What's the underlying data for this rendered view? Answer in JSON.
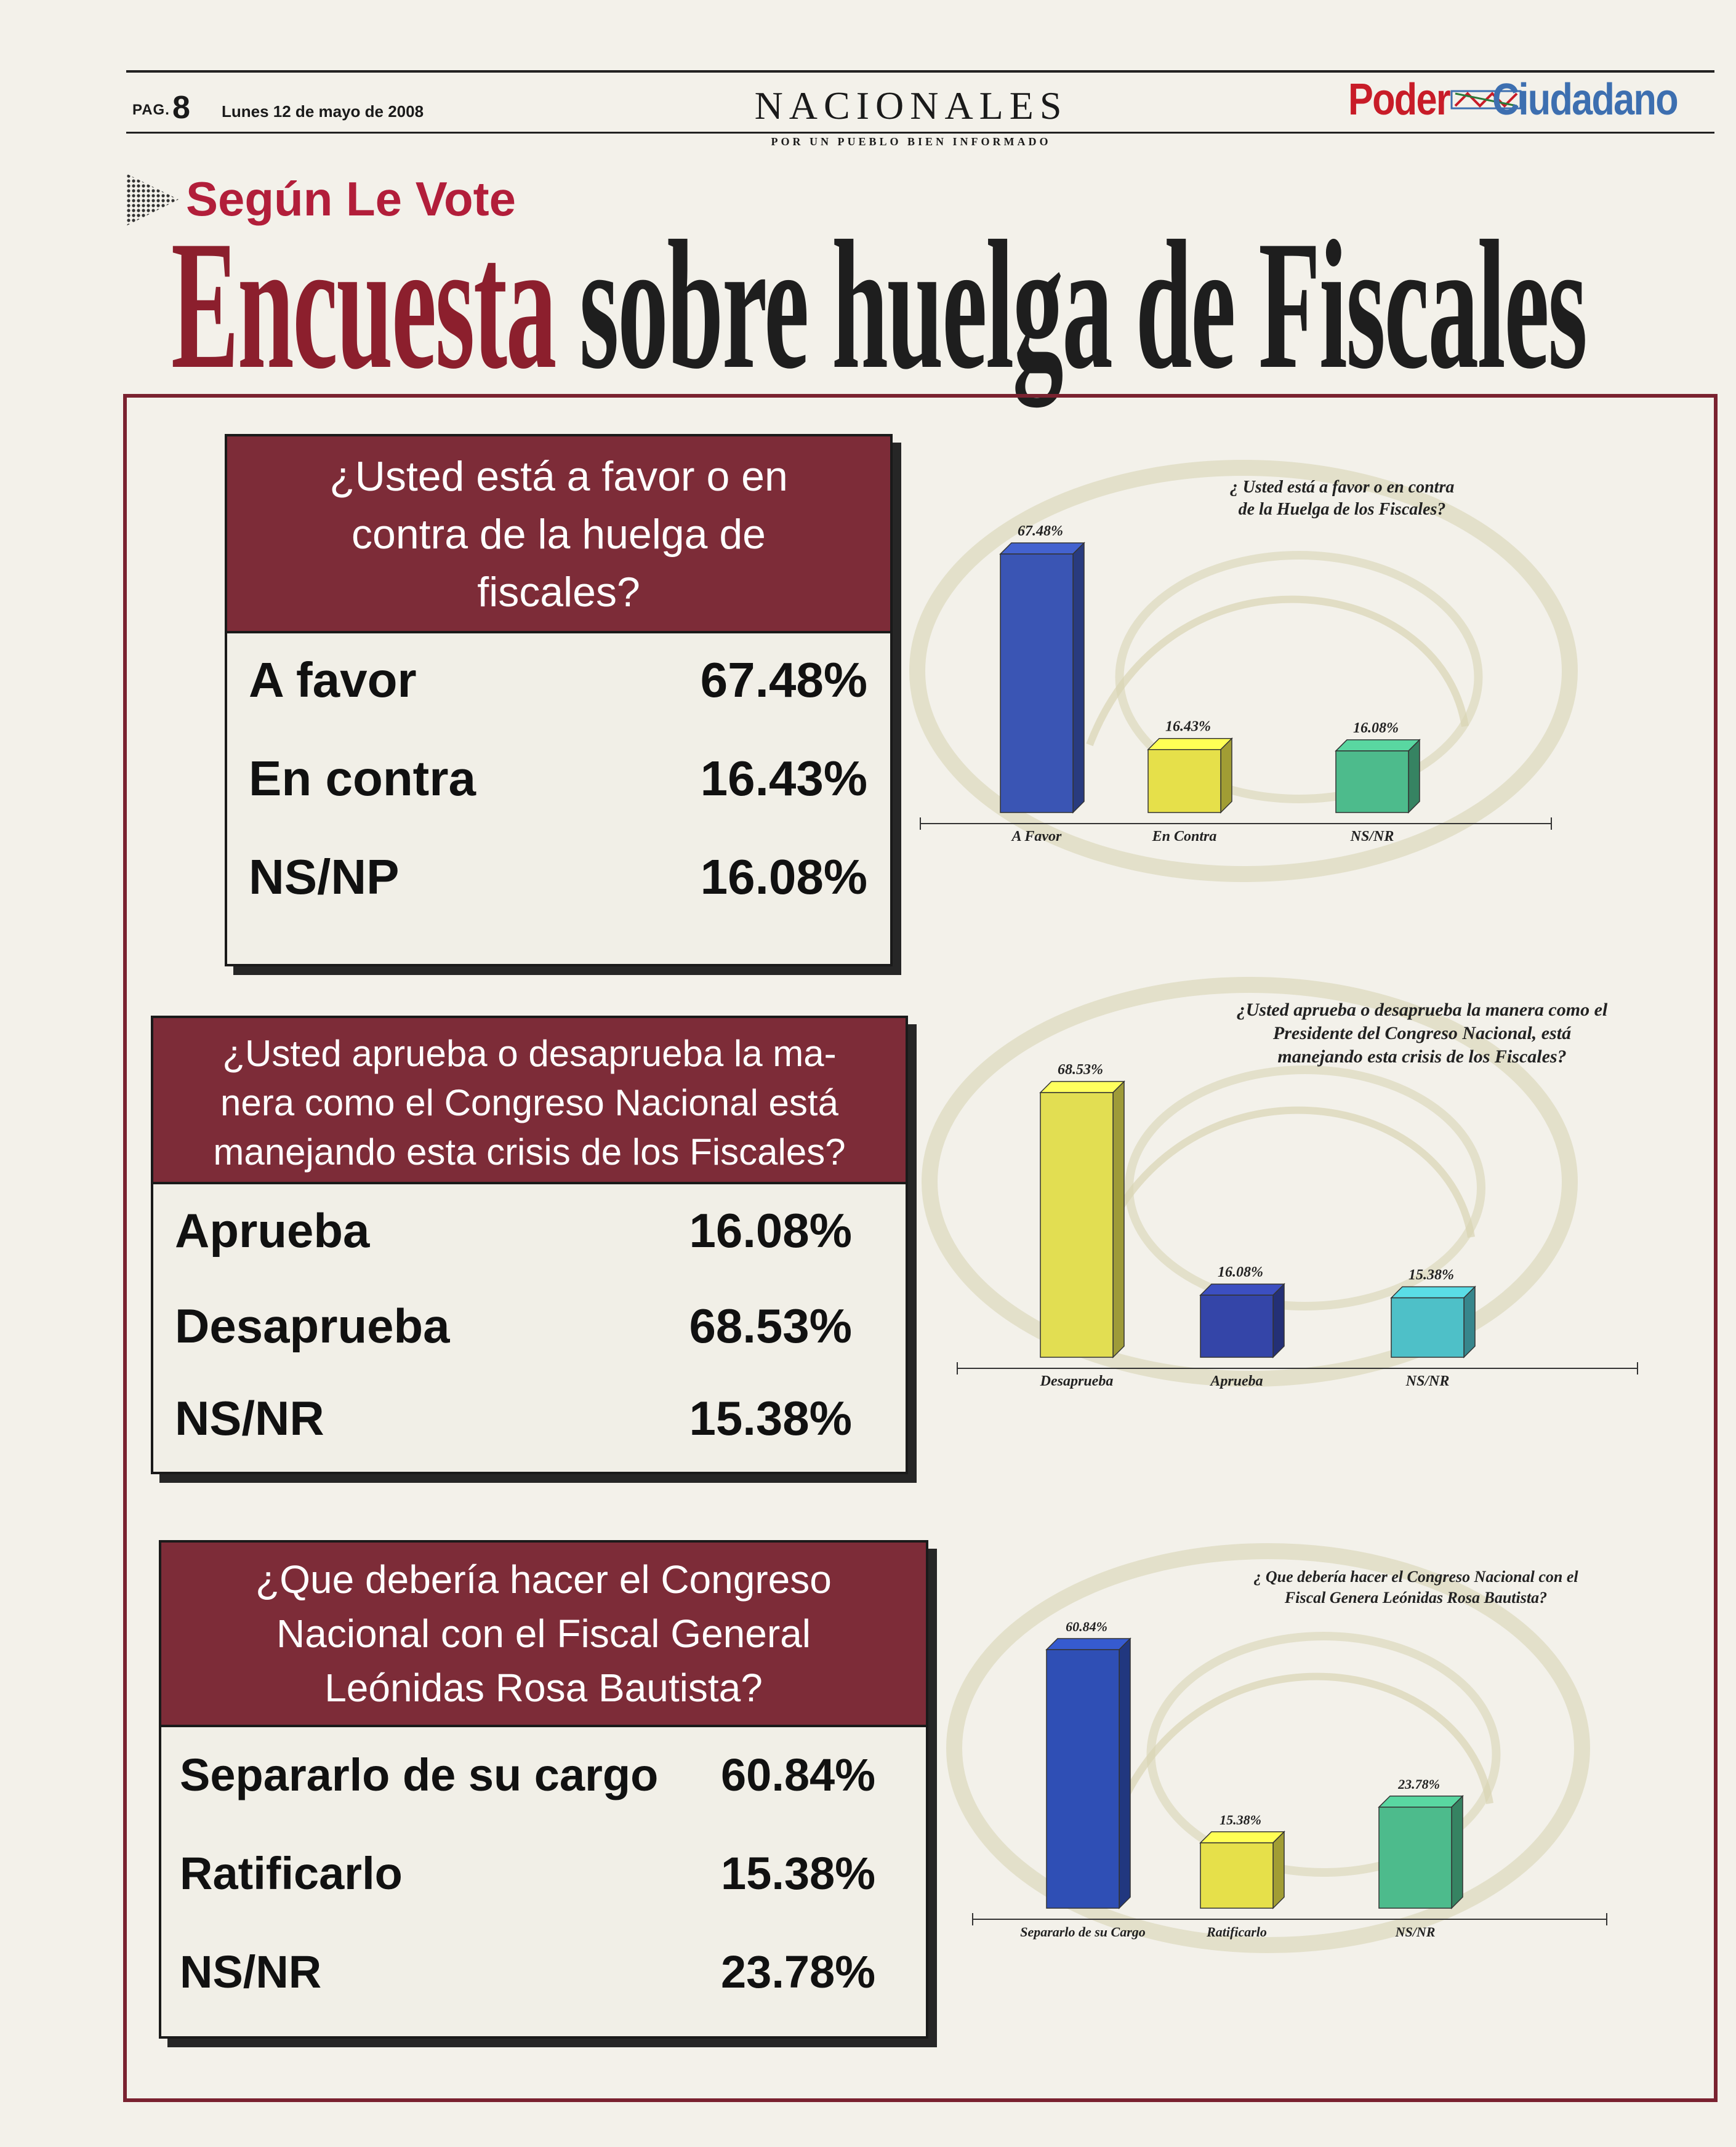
{
  "masthead": {
    "pag_label": "PAG.",
    "pag_number": "8",
    "date": "Lunes 12 de mayo de 2008",
    "section": "NACIONALES",
    "section_tagline": "POR UN PUEBLO BIEN INFORMADO",
    "logo_left": "Poder",
    "logo_right": "Ciudadano"
  },
  "kicker": "Según Le Vote",
  "headline": {
    "part1": "Encuesta",
    "part2": "sobre huelga de Fiscales"
  },
  "questions": [
    {
      "question": [
        "¿Usted está a favor o en",
        "contra de la huelga de",
        "fiscales?"
      ],
      "rows": [
        {
          "label": "A favor",
          "value": "67.48%"
        },
        {
          "label": "En contra",
          "value": "16.43%"
        },
        {
          "label": "NS/NP",
          "value": "16.08%"
        }
      ]
    },
    {
      "question": [
        "¿Usted aprueba o desaprueba la ma-",
        "nera como el Congreso Nacional está",
        "manejando esta crisis de los Fiscales?"
      ],
      "rows": [
        {
          "label": "Aprueba",
          "value": "16.08%"
        },
        {
          "label": "Desaprueba",
          "value": "68.53%"
        },
        {
          "label": "NS/NR",
          "value": "15.38%"
        }
      ]
    },
    {
      "question": [
        "¿Que debería hacer el Congreso",
        "Nacional con el Fiscal General",
        "Leónidas Rosa Bautista?"
      ],
      "rows": [
        {
          "label": "Separarlo de su cargo",
          "value": "60.84%"
        },
        {
          "label": "Ratificarlo",
          "value": "15.38%"
        },
        {
          "label": "NS/NR",
          "value": "23.78%"
        }
      ]
    }
  ],
  "chart_data": [
    {
      "type": "bar",
      "title": [
        "¿ Usted está a favor o en contra",
        "de la Huelga de los Fiscales?"
      ],
      "categories": [
        "A Favor",
        "En Contra",
        "NS/NR"
      ],
      "values": [
        67.48,
        16.43,
        16.08
      ],
      "value_labels": [
        "67.48%",
        "16.43%",
        "16.08%"
      ],
      "colors": [
        "#3a55b4",
        "#e6e04a",
        "#4dbb8c"
      ]
    },
    {
      "type": "bar",
      "title": [
        "¿Usted aprueba o desaprueba la manera como el",
        "Presidente del Congreso Nacional, está",
        "manejando esta crisis de los Fiscales?"
      ],
      "categories": [
        "Desaprueba",
        "Aprueba",
        "NS/NR"
      ],
      "values": [
        68.53,
        16.08,
        15.38
      ],
      "value_labels": [
        "68.53%",
        "16.08%",
        "15.38%"
      ],
      "colors": [
        "#e2de52",
        "#3445a8",
        "#4ec0c8"
      ]
    },
    {
      "type": "bar",
      "title": [
        "¿ Que debería hacer el Congreso Nacional con el",
        "Fiscal Genera Leónidas Rosa Bautista?"
      ],
      "categories": [
        "Separarlo de su Cargo",
        "Ratificarlo",
        "NS/NR"
      ],
      "values": [
        60.84,
        15.38,
        23.78
      ],
      "value_labels": [
        "60.84%",
        "15.38%",
        "23.78%"
      ],
      "colors": [
        "#2f4fb5",
        "#e6e04a",
        "#4dbb8c"
      ]
    }
  ]
}
